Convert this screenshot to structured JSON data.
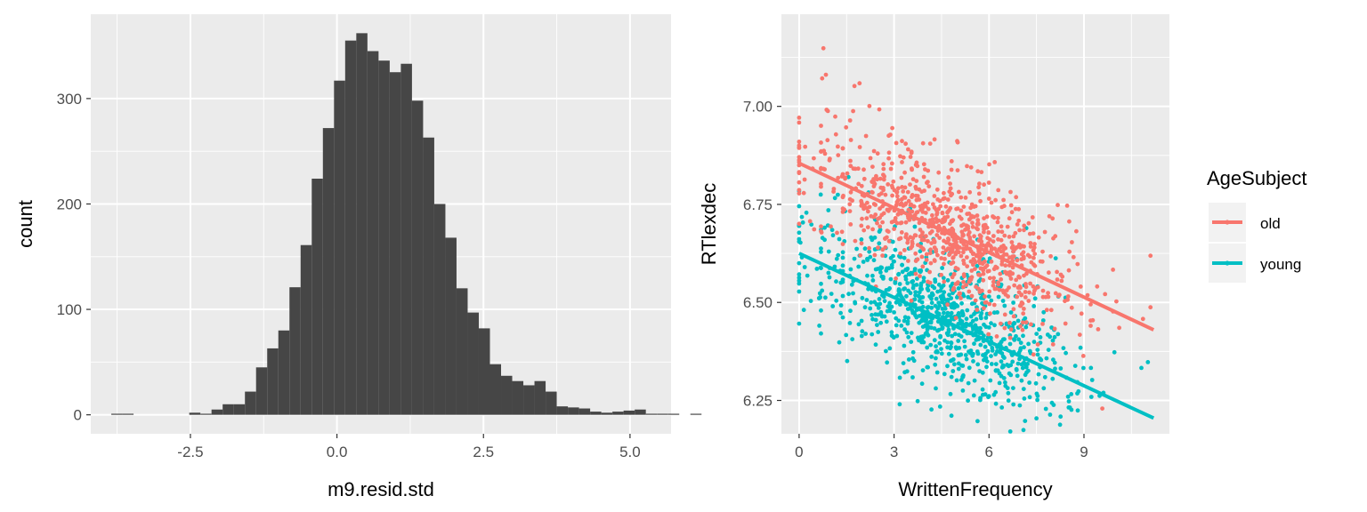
{
  "chart_data": [
    {
      "type": "bar",
      "subtype": "histogram",
      "xlabel": "m9.resid.std",
      "ylabel": "count",
      "xlim": [
        -4.2,
        5.7
      ],
      "ylim": [
        -18,
        380
      ],
      "xticks": [
        -2.5,
        0.0,
        2.5,
        5.0
      ],
      "xtick_labels": [
        "-2.5",
        "0.0",
        "2.5",
        "5.0"
      ],
      "yticks": [
        0,
        100,
        200,
        300
      ],
      "ytick_labels": [
        "0",
        "100",
        "200",
        "300"
      ],
      "bin_width": 0.19,
      "bin_start": -3.85,
      "values": [
        1,
        1,
        0,
        0,
        0,
        0,
        0,
        2,
        1,
        5,
        10,
        10,
        22,
        45,
        63,
        80,
        121,
        161,
        224,
        272,
        317,
        355,
        362,
        345,
        336,
        325,
        333,
        298,
        263,
        200,
        168,
        120,
        97,
        82,
        48,
        37,
        32,
        28,
        32,
        22,
        8,
        7,
        6,
        3,
        2,
        3,
        4,
        5,
        1,
        1,
        1,
        0,
        1
      ],
      "bar_color": "#464646",
      "grid": true
    },
    {
      "type": "scatter",
      "xlabel": "WrittenFrequency",
      "ylabel": "RTlexdec",
      "xlim": [
        -0.56,
        11.7
      ],
      "ylim": [
        6.165,
        7.235
      ],
      "xticks": [
        0,
        3,
        6,
        9
      ],
      "xtick_labels": [
        "0",
        "3",
        "6",
        "9"
      ],
      "yticks": [
        6.25,
        6.5,
        6.75,
        7.0
      ],
      "ytick_labels": [
        "6.25",
        "6.50",
        "6.75",
        "7.00"
      ],
      "grid": true,
      "legend": {
        "title": "AgeSubject",
        "placement": "right",
        "entries": [
          "old",
          "young"
        ]
      },
      "series": [
        {
          "name": "old",
          "color": "#F8766D",
          "point_count": 2284,
          "x_range": [
            0,
            11.2
          ],
          "fit_line": {
            "x": [
              0,
              11.2
            ],
            "y": [
              6.855,
              6.43
            ]
          }
        },
        {
          "name": "young",
          "color": "#00BFC4",
          "point_count": 2284,
          "x_range": [
            0,
            11.2
          ],
          "fit_line": {
            "x": [
              0,
              11.2
            ],
            "y": [
              6.625,
              6.205
            ]
          }
        }
      ]
    }
  ]
}
